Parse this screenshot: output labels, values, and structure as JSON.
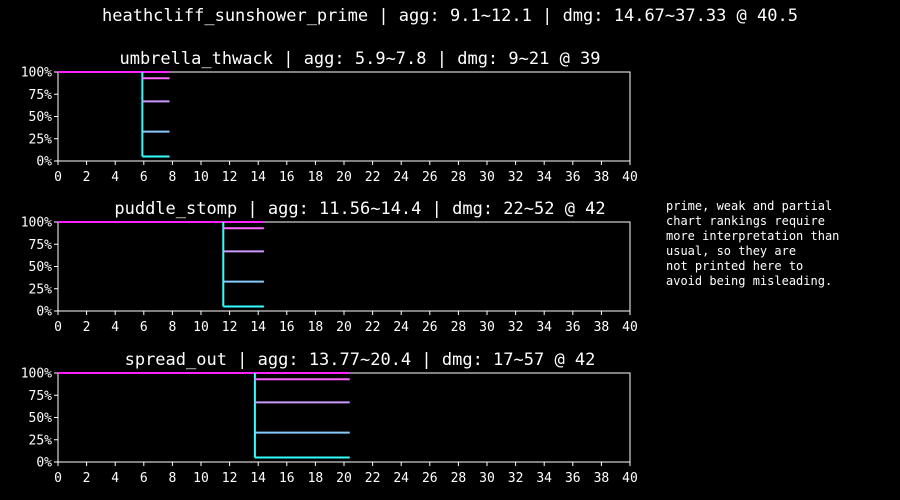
{
  "main_title": "heathcliff_sunshower_prime | agg: 9.1~12.1 | dmg: 14.67~37.33 @ 40.5",
  "side_note": "prime, weak and partial\nchart rankings require\nmore interpretation than\nusual, so they are\nnot printed here to\navoid being misleading.",
  "colors": {
    "background": "#000000",
    "axis": "#ffffff",
    "top_line": "#ff22ff",
    "stem": "#33ffff",
    "steps": [
      "#ff66ff",
      "#cc99ff",
      "#88ccff",
      "#33ffff"
    ]
  },
  "chart_data": [
    {
      "type": "line",
      "title": "umbrella_thwack | agg: 5.9~7.8 | dmg: 9~21 @ 39",
      "xlim": [
        0,
        40
      ],
      "ylim": [
        0,
        1
      ],
      "x_ticks": [
        "0",
        "2",
        "4",
        "6",
        "8",
        "10",
        "12",
        "14",
        "16",
        "18",
        "20",
        "22",
        "24",
        "26",
        "28",
        "30",
        "32",
        "34",
        "36",
        "38",
        "40"
      ],
      "y_ticks": [
        "0%",
        "25%",
        "50%",
        "75%",
        "100%"
      ],
      "top_line": {
        "x_end": 7.8,
        "y": 1.0
      },
      "stem_x": 5.9,
      "steps": [
        {
          "x_end": 7.8,
          "y": 0.93
        },
        {
          "x_end": 7.8,
          "y": 0.67
        },
        {
          "x_end": 7.8,
          "y": 0.33
        },
        {
          "x_end": 7.8,
          "y": 0.05
        }
      ]
    },
    {
      "type": "line",
      "title": "puddle_stomp | agg: 11.56~14.4 | dmg: 22~52 @ 42",
      "xlim": [
        0,
        40
      ],
      "ylim": [
        0,
        1
      ],
      "x_ticks": [
        "0",
        "2",
        "4",
        "6",
        "8",
        "10",
        "12",
        "14",
        "16",
        "18",
        "20",
        "22",
        "24",
        "26",
        "28",
        "30",
        "32",
        "34",
        "36",
        "38",
        "40"
      ],
      "y_ticks": [
        "0%",
        "25%",
        "50%",
        "75%",
        "100%"
      ],
      "top_line": {
        "x_end": 14.4,
        "y": 1.0
      },
      "stem_x": 11.56,
      "steps": [
        {
          "x_end": 14.4,
          "y": 0.93
        },
        {
          "x_end": 14.4,
          "y": 0.67
        },
        {
          "x_end": 14.4,
          "y": 0.33
        },
        {
          "x_end": 14.4,
          "y": 0.05
        }
      ]
    },
    {
      "type": "line",
      "title": "spread_out | agg: 13.77~20.4 | dmg: 17~57 @ 42",
      "xlim": [
        0,
        40
      ],
      "ylim": [
        0,
        1
      ],
      "x_ticks": [
        "0",
        "2",
        "4",
        "6",
        "8",
        "10",
        "12",
        "14",
        "16",
        "18",
        "20",
        "22",
        "24",
        "26",
        "28",
        "30",
        "32",
        "34",
        "36",
        "38",
        "40"
      ],
      "y_ticks": [
        "0%",
        "25%",
        "50%",
        "75%",
        "100%"
      ],
      "top_line": {
        "x_end": 20.4,
        "y": 1.0
      },
      "stem_x": 13.77,
      "steps": [
        {
          "x_end": 20.4,
          "y": 0.93
        },
        {
          "x_end": 20.4,
          "y": 0.67
        },
        {
          "x_end": 20.4,
          "y": 0.33
        },
        {
          "x_end": 20.4,
          "y": 0.05
        }
      ]
    }
  ]
}
